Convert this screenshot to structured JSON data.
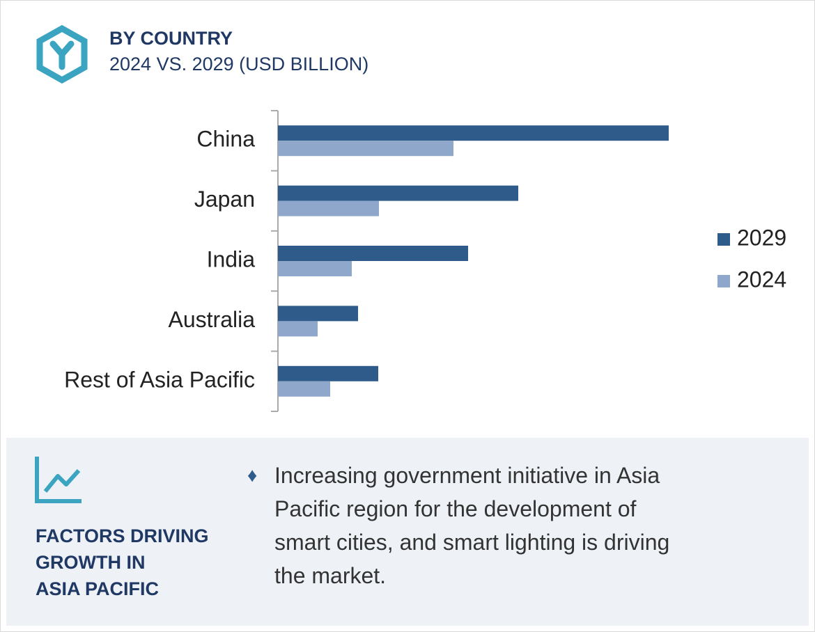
{
  "chart_data": {
    "type": "hbar",
    "title": "BY COUNTRY",
    "subtitle": "2024 VS. 2029 (USD BILLION)",
    "categories": [
      "China",
      "Japan",
      "India",
      "Australia",
      "Rest of Asia Pacific"
    ],
    "series": [
      {
        "name": "2029",
        "color": "#2e5b8a",
        "values": [
          561,
          345,
          273,
          115,
          144
        ]
      },
      {
        "name": "2024",
        "color": "#8ea7cb",
        "values": [
          252,
          145,
          106,
          57,
          75
        ]
      }
    ],
    "legend": "right"
  },
  "factors": {
    "heading": [
      "FACTORS DRIVING",
      "GROWTH IN",
      "ASIA PACIFIC"
    ],
    "points": [
      "Increasing government initiative in Asia Pacific region for the development of smart cities, and smart lighting is driving the market."
    ]
  }
}
